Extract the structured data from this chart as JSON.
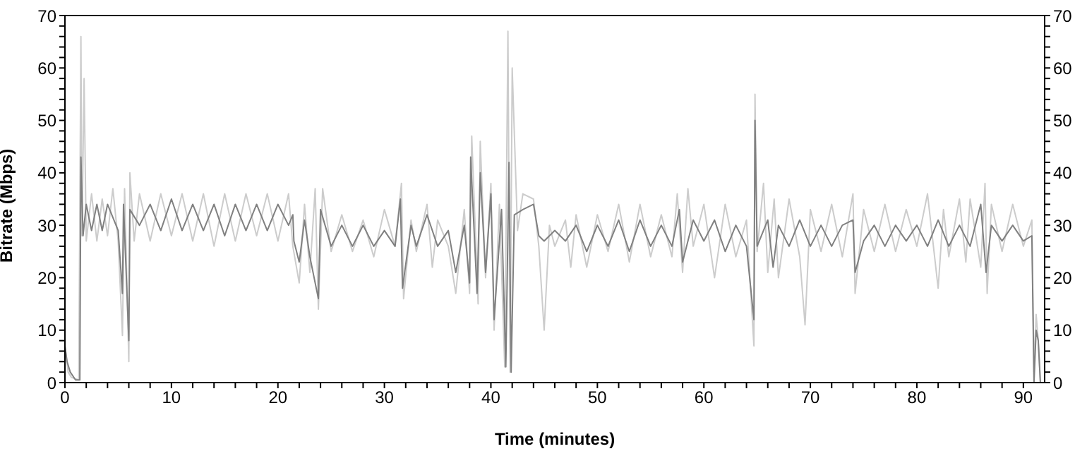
{
  "chart_data": {
    "type": "line",
    "xlabel": "Time (minutes)",
    "ylabel": "Bitrate (Mbps)",
    "xlim": [
      0,
      92
    ],
    "ylim": [
      0,
      70
    ],
    "y2lim": [
      0,
      70
    ],
    "xticks": [
      0,
      {
        "value": 2,
        "label": null
      },
      {
        "value": 4,
        "label": null
      },
      {
        "value": 6,
        "label": null
      },
      {
        "value": 8,
        "label": null
      },
      10,
      {
        "value": 12,
        "label": null
      },
      {
        "value": 14,
        "label": null
      },
      {
        "value": 16,
        "label": null
      },
      {
        "value": 18,
        "label": null
      },
      20,
      {
        "value": 22,
        "label": null
      },
      {
        "value": 24,
        "label": null
      },
      {
        "value": 26,
        "label": null
      },
      {
        "value": 28,
        "label": null
      },
      30,
      {
        "value": 32,
        "label": null
      },
      {
        "value": 34,
        "label": null
      },
      {
        "value": 36,
        "label": null
      },
      {
        "value": 38,
        "label": null
      },
      40,
      {
        "value": 42,
        "label": null
      },
      {
        "value": 44,
        "label": null
      },
      {
        "value": 46,
        "label": null
      },
      {
        "value": 48,
        "label": null
      },
      50,
      {
        "value": 52,
        "label": null
      },
      {
        "value": 54,
        "label": null
      },
      {
        "value": 56,
        "label": null
      },
      {
        "value": 58,
        "label": null
      },
      60,
      {
        "value": 62,
        "label": null
      },
      {
        "value": 64,
        "label": null
      },
      {
        "value": 66,
        "label": null
      },
      {
        "value": 68,
        "label": null
      },
      70,
      {
        "value": 72,
        "label": null
      },
      {
        "value": 74,
        "label": null
      },
      {
        "value": 76,
        "label": null
      },
      {
        "value": 78,
        "label": null
      },
      80,
      {
        "value": 82,
        "label": null
      },
      {
        "value": 84,
        "label": null
      },
      {
        "value": 86,
        "label": null
      },
      {
        "value": 88,
        "label": null
      },
      90
    ],
    "yticks": [
      0,
      {
        "value": 2,
        "label": null
      },
      {
        "value": 4,
        "label": null
      },
      {
        "value": 6,
        "label": null
      },
      {
        "value": 8,
        "label": null
      },
      10,
      {
        "value": 12,
        "label": null
      },
      {
        "value": 14,
        "label": null
      },
      {
        "value": 16,
        "label": null
      },
      {
        "value": 18,
        "label": null
      },
      20,
      {
        "value": 22,
        "label": null
      },
      {
        "value": 24,
        "label": null
      },
      {
        "value": 26,
        "label": null
      },
      {
        "value": 28,
        "label": null
      },
      30,
      {
        "value": 32,
        "label": null
      },
      {
        "value": 34,
        "label": null
      },
      {
        "value": 36,
        "label": null
      },
      {
        "value": 38,
        "label": null
      },
      40,
      {
        "value": 42,
        "label": null
      },
      {
        "value": 44,
        "label": null
      },
      {
        "value": 46,
        "label": null
      },
      {
        "value": 48,
        "label": null
      },
      50,
      {
        "value": 52,
        "label": null
      },
      {
        "value": 54,
        "label": null
      },
      {
        "value": 56,
        "label": null
      },
      {
        "value": 58,
        "label": null
      },
      60,
      {
        "value": 62,
        "label": null
      },
      {
        "value": 64,
        "label": null
      },
      {
        "value": 66,
        "label": null
      },
      {
        "value": 68,
        "label": null
      },
      70
    ],
    "y2ticks": [
      0,
      {
        "value": 2,
        "label": null
      },
      {
        "value": 4,
        "label": null
      },
      {
        "value": 6,
        "label": null
      },
      {
        "value": 8,
        "label": null
      },
      10,
      {
        "value": 12,
        "label": null
      },
      {
        "value": 14,
        "label": null
      },
      {
        "value": 16,
        "label": null
      },
      {
        "value": 18,
        "label": null
      },
      20,
      {
        "value": 22,
        "label": null
      },
      {
        "value": 24,
        "label": null
      },
      {
        "value": 26,
        "label": null
      },
      {
        "value": 28,
        "label": null
      },
      30,
      {
        "value": 32,
        "label": null
      },
      {
        "value": 34,
        "label": null
      },
      {
        "value": 36,
        "label": null
      },
      {
        "value": 38,
        "label": null
      },
      40,
      {
        "value": 42,
        "label": null
      },
      {
        "value": 44,
        "label": null
      },
      {
        "value": 46,
        "label": null
      },
      {
        "value": 48,
        "label": null
      },
      50,
      {
        "value": 52,
        "label": null
      },
      {
        "value": 54,
        "label": null
      },
      {
        "value": 56,
        "label": null
      },
      {
        "value": 58,
        "label": null
      },
      60,
      {
        "value": 62,
        "label": null
      },
      {
        "value": 64,
        "label": null
      },
      {
        "value": 66,
        "label": null
      },
      {
        "value": 68,
        "label": null
      },
      70
    ],
    "marker": "none",
    "line_style": "solid",
    "series": [
      {
        "color": "#cccccc",
        "x": [
          0,
          0.3,
          0.6,
          1.3,
          1.5,
          1.6,
          1.8,
          2,
          2.5,
          3,
          3.5,
          4,
          4.5,
          5,
          5.4,
          5.6,
          6,
          6.1,
          6.5,
          7,
          8,
          9,
          10,
          11,
          12,
          13,
          14,
          15,
          16,
          17,
          18,
          19,
          20,
          21,
          21.4,
          22,
          22.5,
          23,
          23.5,
          23.8,
          24.2,
          25,
          26,
          27,
          28,
          29,
          30,
          31,
          31.6,
          31.8,
          32.5,
          33,
          34,
          34.5,
          35,
          36,
          36.7,
          37.5,
          38,
          38.2,
          38.8,
          39,
          39.5,
          40,
          40.3,
          40.8,
          41.3,
          41.6,
          41.8,
          42,
          42.5,
          43,
          44,
          44.5,
          45,
          45.5,
          46,
          47,
          47.5,
          48,
          49,
          50,
          51,
          52,
          53,
          54,
          55,
          56,
          57,
          57.5,
          58,
          58.5,
          59,
          60,
          61,
          62,
          63,
          64,
          64.7,
          64.8,
          65,
          65.6,
          66,
          66.6,
          67,
          68,
          69,
          69.5,
          70,
          71,
          72,
          73,
          74,
          74.2,
          75,
          76,
          77,
          78,
          79,
          80,
          81,
          82,
          82.5,
          83,
          84,
          84.6,
          85,
          86,
          86.4,
          86.6,
          87,
          88,
          89,
          90,
          90.8,
          91,
          91.2,
          91.4,
          91.6
        ],
        "values": [
          7,
          2,
          1,
          0.5,
          66,
          28,
          58,
          27,
          36,
          27,
          35,
          28,
          37,
          27,
          9,
          37,
          4,
          40,
          27,
          36,
          27,
          36,
          28,
          36,
          27,
          36,
          26,
          36,
          27,
          36,
          28,
          36,
          27,
          36,
          26,
          19,
          34,
          21,
          37,
          14,
          37,
          25,
          32,
          25,
          31,
          24,
          33,
          26,
          38,
          16,
          31,
          25,
          34,
          22,
          31,
          26,
          17,
          33,
          17,
          47,
          15,
          46,
          20,
          38,
          10,
          34,
          3,
          67,
          2,
          60,
          29,
          36,
          35,
          26,
          10,
          30,
          26,
          31,
          22,
          32,
          22,
          32,
          25,
          34,
          23,
          34,
          24,
          32,
          24,
          36,
          21,
          37,
          26,
          34,
          20,
          34,
          24,
          31,
          7,
          55,
          25,
          38,
          21,
          35,
          20,
          35,
          24,
          11,
          33,
          25,
          34,
          24,
          36,
          17,
          33,
          25,
          34,
          25,
          33,
          26,
          36,
          18,
          33,
          24,
          35,
          23,
          35,
          22,
          38,
          17,
          34,
          25,
          34,
          26,
          31,
          2,
          13,
          8,
          0
        ]
      },
      {
        "color": "#808080",
        "x": [
          0,
          0.2,
          0.5,
          1,
          1.4,
          1.5,
          1.7,
          2,
          2.5,
          3,
          3.5,
          4,
          5,
          5.4,
          5.5,
          6,
          6.1,
          7,
          8,
          9,
          10,
          11,
          12,
          13,
          14,
          15,
          16,
          17,
          18,
          19,
          20,
          21,
          21.4,
          21.5,
          22,
          22.5,
          23,
          23.8,
          24,
          25,
          26,
          27,
          28,
          29,
          30,
          31,
          31.5,
          31.7,
          32.5,
          33,
          34,
          35,
          36,
          36.7,
          37.5,
          38,
          38.1,
          38.7,
          39,
          39.5,
          40,
          40.3,
          41,
          41.4,
          41.7,
          41.9,
          42.2,
          43,
          44,
          44.5,
          45,
          46,
          47,
          48,
          49,
          50,
          51,
          52,
          53,
          54,
          55,
          56,
          57,
          57.7,
          58,
          59,
          60,
          61,
          62,
          63,
          64,
          64.7,
          64.8,
          65,
          66,
          66.5,
          67,
          68,
          69,
          70,
          71,
          72,
          73,
          74,
          74.2,
          75,
          76,
          77,
          78,
          79,
          80,
          81,
          82,
          83,
          84,
          85,
          86,
          86.5,
          87,
          88,
          89,
          90,
          90.8,
          91,
          91.2,
          91.4,
          91.6
        ],
        "values": [
          7,
          4,
          2,
          0.5,
          0.5,
          43,
          28,
          34,
          29,
          34,
          29,
          34,
          29,
          17,
          34,
          8,
          33,
          30,
          34,
          29,
          35,
          29,
          34,
          29,
          34,
          28,
          34,
          29,
          34,
          29,
          34,
          30,
          32,
          27,
          23,
          31,
          24,
          16,
          33,
          26,
          30,
          26,
          30,
          26,
          29,
          26,
          35,
          18,
          30,
          26,
          32,
          26,
          29,
          21,
          30,
          19,
          43,
          17,
          40,
          21,
          36,
          12,
          33,
          3,
          42,
          2,
          32,
          33,
          34,
          28,
          27,
          29,
          27,
          30,
          25,
          30,
          26,
          31,
          25,
          31,
          26,
          30,
          26,
          33,
          23,
          31,
          27,
          31,
          25,
          30,
          26,
          12,
          50,
          26,
          31,
          22,
          30,
          26,
          31,
          26,
          30,
          26,
          30,
          31,
          21,
          27,
          30,
          26,
          30,
          27,
          30,
          26,
          31,
          26,
          30,
          26,
          34,
          21,
          30,
          27,
          30,
          27,
          28,
          0,
          10,
          8,
          0
        ]
      }
    ]
  }
}
